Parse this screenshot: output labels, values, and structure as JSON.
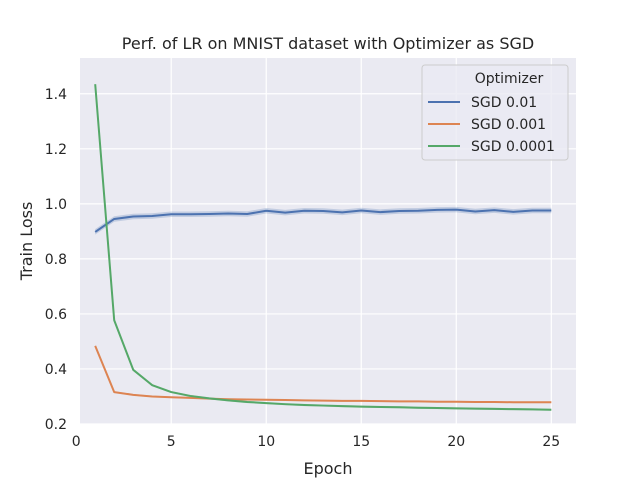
{
  "chart_data": {
    "type": "line",
    "title": "Perf. of LR on MNIST dataset with Optimizer as SGD",
    "xlabel": "Epoch",
    "ylabel": "Train Loss",
    "xlim": [
      0.2,
      26.3
    ],
    "ylim": [
      0.2,
      1.53
    ],
    "xticks": [
      0,
      5,
      10,
      15,
      20,
      25
    ],
    "yticks": [
      0.2,
      0.4,
      0.6,
      0.8,
      1.0,
      1.2,
      1.4
    ],
    "xtick_labels": [
      "0",
      "5",
      "10",
      "15",
      "20",
      "25"
    ],
    "ytick_labels": [
      "0.2",
      "0.4",
      "0.6",
      "0.8",
      "1.0",
      "1.2",
      "1.4"
    ],
    "grid": true,
    "legend": {
      "title": "Optimizer",
      "position": "top-right"
    },
    "x": [
      1,
      2,
      3,
      4,
      5,
      6,
      7,
      8,
      9,
      10,
      11,
      12,
      13,
      14,
      15,
      16,
      17,
      18,
      19,
      20,
      21,
      22,
      23,
      24,
      25
    ],
    "series": [
      {
        "name": "SGD 0.01",
        "color": "#4c72b0",
        "values": [
          0.898,
          0.945,
          0.954,
          0.956,
          0.962,
          0.962,
          0.963,
          0.965,
          0.963,
          0.975,
          0.968,
          0.975,
          0.974,
          0.969,
          0.976,
          0.97,
          0.974,
          0.975,
          0.978,
          0.979,
          0.972,
          0.977,
          0.971,
          0.976,
          0.976
        ],
        "band": 0.01
      },
      {
        "name": "SGD 0.001",
        "color": "#dd8452",
        "values": [
          0.484,
          0.316,
          0.306,
          0.3,
          0.297,
          0.295,
          0.292,
          0.29,
          0.289,
          0.288,
          0.287,
          0.286,
          0.285,
          0.284,
          0.284,
          0.283,
          0.282,
          0.282,
          0.281,
          0.281,
          0.28,
          0.28,
          0.279,
          0.279,
          0.279
        ],
        "band": 0.003
      },
      {
        "name": "SGD 0.0001",
        "color": "#55a868",
        "values": [
          1.435,
          0.577,
          0.397,
          0.341,
          0.316,
          0.302,
          0.293,
          0.286,
          0.28,
          0.276,
          0.272,
          0.269,
          0.267,
          0.265,
          0.263,
          0.262,
          0.261,
          0.259,
          0.258,
          0.257,
          0.256,
          0.255,
          0.254,
          0.253,
          0.252
        ],
        "band": 0.004
      }
    ]
  }
}
